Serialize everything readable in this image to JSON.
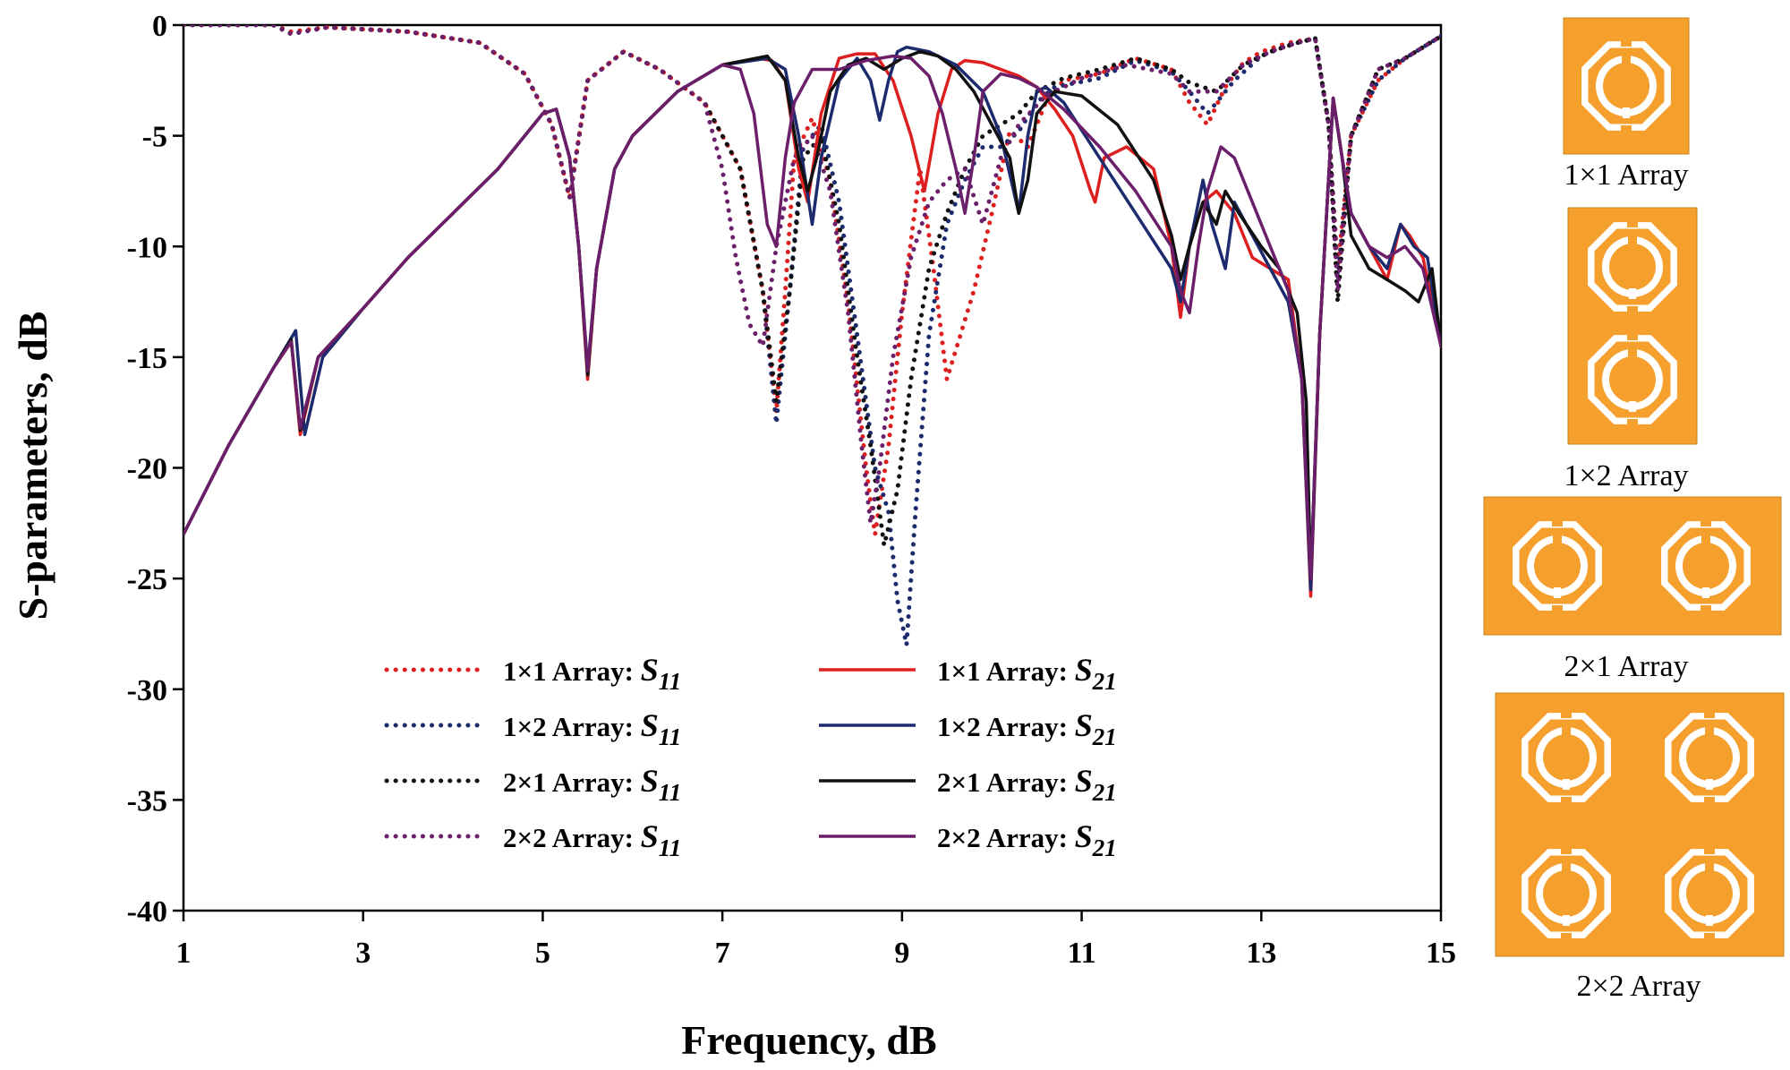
{
  "chart_data": {
    "type": "line",
    "title": "",
    "xlabel": "Frequency, dB",
    "ylabel": "S-parameters, dB",
    "xlim": [
      1,
      15
    ],
    "ylim": [
      -40,
      0
    ],
    "xticks": [
      1,
      3,
      5,
      7,
      9,
      11,
      13,
      15
    ],
    "yticks": [
      0,
      -5,
      -10,
      -15,
      -20,
      -25,
      -30,
      -35,
      -40
    ],
    "legend_position": "bottom-center",
    "series": [
      {
        "name": "1×1 Array: S11",
        "array": "1×1 Array",
        "param": "S",
        "sub": "11",
        "style": "dotted",
        "color": "#dd1f1f",
        "x": [
          1,
          2,
          2.2,
          2.6,
          3.5,
          4.3,
          4.8,
          5.1,
          5.3,
          5.5,
          5.9,
          6.3,
          6.8,
          7.2,
          7.45,
          7.6,
          7.7,
          7.8,
          8.0,
          8.2,
          8.4,
          8.6,
          8.7,
          8.85,
          9.0,
          9.2,
          9.35,
          9.5,
          9.65,
          9.8,
          10.0,
          10.2,
          10.4,
          10.6,
          10.8,
          11.2,
          11.6,
          12.0,
          12.2,
          12.4,
          12.6,
          12.8,
          13.0,
          13.3,
          13.6,
          13.75,
          13.85,
          14.0,
          14.3,
          14.6,
          15
        ],
        "y": [
          0,
          0,
          -0.3,
          -0.1,
          -0.3,
          -0.8,
          -2.2,
          -4.5,
          -7.8,
          -2.5,
          -1.2,
          -2.0,
          -3.5,
          -6.5,
          -12.0,
          -17.5,
          -12.0,
          -6.0,
          -4.2,
          -7.0,
          -12.5,
          -20.0,
          -23.0,
          -19.0,
          -13.0,
          -6.5,
          -11.0,
          -16.0,
          -14.0,
          -12.0,
          -8.5,
          -4.8,
          -5.5,
          -3.5,
          -2.5,
          -2.2,
          -1.5,
          -2.0,
          -3.5,
          -4.5,
          -2.8,
          -1.7,
          -1.2,
          -0.8,
          -0.6,
          -4.5,
          -11.0,
          -5.0,
          -2.5,
          -1.5,
          -0.5
        ]
      },
      {
        "name": "1×2 Array: S11",
        "array": "1×2 Array",
        "param": "S",
        "sub": "11",
        "style": "dotted",
        "color": "#1c2a6e",
        "x": [
          1,
          2,
          2.2,
          2.6,
          3.5,
          4.3,
          4.8,
          5.1,
          5.3,
          5.5,
          5.9,
          6.3,
          6.8,
          7.2,
          7.45,
          7.6,
          7.75,
          7.9,
          8.1,
          8.3,
          8.5,
          8.7,
          8.85,
          8.95,
          9.05,
          9.15,
          9.3,
          9.5,
          9.7,
          9.9,
          10.1,
          10.3,
          10.5,
          10.7,
          11.2,
          11.6,
          12.0,
          12.2,
          12.4,
          12.7,
          13.0,
          13.3,
          13.6,
          13.75,
          13.85,
          14.0,
          14.3,
          14.6,
          15
        ],
        "y": [
          0,
          0,
          -0.4,
          -0.1,
          -0.3,
          -0.8,
          -2.2,
          -4.5,
          -7.8,
          -2.5,
          -1.2,
          -2.0,
          -3.5,
          -6.5,
          -12.0,
          -18.0,
          -12.0,
          -5.5,
          -4.5,
          -8.0,
          -14.0,
          -20.0,
          -22.0,
          -26.0,
          -28.0,
          -22.0,
          -14.0,
          -9.0,
          -7.0,
          -5.5,
          -5.5,
          -4.8,
          -3.5,
          -2.8,
          -2.4,
          -1.6,
          -2.1,
          -3.0,
          -4.0,
          -2.5,
          -1.4,
          -0.9,
          -0.6,
          -4.5,
          -11.5,
          -5.0,
          -2.5,
          -1.5,
          -0.5
        ]
      },
      {
        "name": "2×1 Array: S11",
        "array": "2×1 Array",
        "param": "S",
        "sub": "11",
        "style": "dotted",
        "color": "#111111",
        "x": [
          1,
          2,
          2.2,
          2.6,
          3.5,
          4.3,
          4.8,
          5.1,
          5.3,
          5.5,
          5.9,
          6.3,
          6.8,
          7.2,
          7.45,
          7.6,
          7.75,
          7.9,
          8.1,
          8.3,
          8.5,
          8.65,
          8.8,
          8.95,
          9.1,
          9.3,
          9.5,
          9.7,
          9.9,
          10.1,
          10.3,
          10.5,
          10.8,
          11.2,
          11.6,
          12.0,
          12.2,
          12.5,
          12.8,
          13.1,
          13.4,
          13.6,
          13.75,
          13.85,
          14.0,
          14.3,
          14.6,
          15
        ],
        "y": [
          0,
          0,
          -0.4,
          -0.1,
          -0.3,
          -0.8,
          -2.2,
          -4.5,
          -7.8,
          -2.5,
          -1.2,
          -2.0,
          -3.5,
          -6.5,
          -12.0,
          -17.0,
          -12.0,
          -6.0,
          -5.0,
          -9.0,
          -15.0,
          -19.0,
          -23.5,
          -21.0,
          -16.0,
          -11.0,
          -8.5,
          -6.5,
          -5.0,
          -4.5,
          -4.0,
          -3.0,
          -2.4,
          -2.0,
          -1.5,
          -2.0,
          -2.6,
          -3.0,
          -1.8,
          -1.2,
          -0.8,
          -0.6,
          -4.5,
          -12.5,
          -5.0,
          -2.0,
          -1.5,
          -0.5
        ]
      },
      {
        "name": "2×2 Array: S11",
        "array": "2×2 Array",
        "param": "S",
        "sub": "11",
        "style": "dotted",
        "color": "#6b1f6b",
        "x": [
          1,
          2,
          2.2,
          2.6,
          3.5,
          4.3,
          4.8,
          5.1,
          5.3,
          5.5,
          5.9,
          6.3,
          6.8,
          7.0,
          7.15,
          7.3,
          7.45,
          7.6,
          7.8,
          8.0,
          8.2,
          8.4,
          8.55,
          8.65,
          8.75,
          8.9,
          9.1,
          9.3,
          9.5,
          9.7,
          9.9,
          10.1,
          10.3,
          10.6,
          11.0,
          11.5,
          12.0,
          12.2,
          12.5,
          12.8,
          13.1,
          13.4,
          13.6,
          13.75,
          13.85,
          14.0,
          14.3,
          14.6,
          15
        ],
        "y": [
          0,
          0,
          -0.4,
          -0.1,
          -0.3,
          -0.8,
          -2.2,
          -4.5,
          -7.8,
          -2.5,
          -1.2,
          -2.0,
          -3.5,
          -6.5,
          -10.5,
          -13.5,
          -14.5,
          -10.0,
          -6.0,
          -5.0,
          -7.5,
          -13.0,
          -19.0,
          -22.5,
          -20.0,
          -15.0,
          -10.5,
          -8.0,
          -7.0,
          -6.5,
          -9.0,
          -6.0,
          -4.5,
          -3.2,
          -2.4,
          -1.8,
          -2.2,
          -3.0,
          -3.0,
          -1.8,
          -1.2,
          -0.8,
          -0.6,
          -4.5,
          -12.0,
          -5.0,
          -2.0,
          -1.5,
          -0.5
        ]
      },
      {
        "name": "1×1 Array: S21",
        "array": "1×1 Array",
        "param": "S",
        "sub": "21",
        "style": "solid",
        "color": "#dd1f1f",
        "x": [
          1,
          1.5,
          2.0,
          2.2,
          2.3,
          2.5,
          3.0,
          3.5,
          4.0,
          4.5,
          5.0,
          5.15,
          5.3,
          5.4,
          5.5,
          5.6,
          5.8,
          6.0,
          6.5,
          7.0,
          7.4,
          7.55,
          7.7,
          7.85,
          7.95,
          8.1,
          8.3,
          8.5,
          8.7,
          8.9,
          9.1,
          9.25,
          9.4,
          9.55,
          9.7,
          9.9,
          10.1,
          10.3,
          10.5,
          10.7,
          10.9,
          11.1,
          11.15,
          11.25,
          11.5,
          11.8,
          12.0,
          12.1,
          12.2,
          12.35,
          12.5,
          12.7,
          12.9,
          13.1,
          13.3,
          13.45,
          13.55,
          13.65,
          13.8,
          13.9,
          14.0,
          14.2,
          14.4,
          14.55,
          14.65,
          14.8,
          15
        ],
        "y": [
          -23.0,
          -19.0,
          -15.5,
          -14.3,
          -18.5,
          -15.0,
          -12.8,
          -10.5,
          -8.5,
          -6.5,
          -4.0,
          -3.8,
          -6.0,
          -10.0,
          -16.0,
          -11.0,
          -6.5,
          -5.0,
          -3.0,
          -1.8,
          -1.5,
          -1.6,
          -2.5,
          -6.5,
          -8.0,
          -4.0,
          -1.5,
          -1.3,
          -1.3,
          -2.5,
          -5.0,
          -7.5,
          -4.0,
          -2.0,
          -1.6,
          -1.7,
          -2.0,
          -2.3,
          -2.8,
          -3.8,
          -5.0,
          -7.5,
          -8.0,
          -6.0,
          -5.5,
          -6.5,
          -10.0,
          -13.2,
          -10.0,
          -8.0,
          -7.5,
          -8.5,
          -10.5,
          -11.0,
          -11.5,
          -16.0,
          -25.8,
          -14.0,
          -3.3,
          -6.0,
          -8.5,
          -10.0,
          -11.5,
          -9.0,
          -9.5,
          -10.5,
          -14.5
        ]
      },
      {
        "name": "1×2 Array: S21",
        "array": "1×2 Array",
        "param": "S",
        "sub": "21",
        "style": "solid",
        "color": "#1c2a6e",
        "x": [
          1,
          1.5,
          2.0,
          2.25,
          2.35,
          2.55,
          3.0,
          3.5,
          4.0,
          4.5,
          5.0,
          5.15,
          5.3,
          5.4,
          5.5,
          5.6,
          5.8,
          6.0,
          6.5,
          7.0,
          7.5,
          7.7,
          7.85,
          8.0,
          8.1,
          8.3,
          8.5,
          8.65,
          8.75,
          8.85,
          8.95,
          9.05,
          9.3,
          9.6,
          9.9,
          10.1,
          10.3,
          10.4,
          10.5,
          10.6,
          10.8,
          11.2,
          11.6,
          12.0,
          12.1,
          12.2,
          12.35,
          12.45,
          12.6,
          12.7,
          12.9,
          13.1,
          13.3,
          13.45,
          13.55,
          13.65,
          13.8,
          13.9,
          14.0,
          14.2,
          14.4,
          14.55,
          14.7,
          14.85,
          15
        ],
        "y": [
          -23.0,
          -19.0,
          -15.5,
          -13.8,
          -18.5,
          -15.0,
          -12.8,
          -10.5,
          -8.5,
          -6.5,
          -4.0,
          -3.8,
          -6.0,
          -10.0,
          -15.5,
          -11.0,
          -6.5,
          -5.0,
          -3.0,
          -1.8,
          -1.5,
          -2.0,
          -5.0,
          -9.0,
          -6.0,
          -2.5,
          -1.5,
          -2.5,
          -4.3,
          -2.5,
          -1.2,
          -1.0,
          -1.2,
          -1.8,
          -3.0,
          -5.0,
          -8.5,
          -5.0,
          -3.0,
          -2.8,
          -3.5,
          -6.0,
          -8.5,
          -11.0,
          -12.5,
          -10.0,
          -7.0,
          -9.0,
          -11.0,
          -8.0,
          -9.5,
          -11.0,
          -12.5,
          -16.0,
          -25.5,
          -14.0,
          -3.3,
          -6.0,
          -8.5,
          -10.0,
          -11.0,
          -9.0,
          -10.0,
          -10.5,
          -14.5
        ]
      },
      {
        "name": "2×1 Array: S21",
        "array": "2×1 Array",
        "param": "S",
        "sub": "21",
        "style": "solid",
        "color": "#111111",
        "x": [
          1,
          1.5,
          2.0,
          2.2,
          2.3,
          2.5,
          3.0,
          3.5,
          4.0,
          4.5,
          5.0,
          5.15,
          5.3,
          5.4,
          5.5,
          5.6,
          5.8,
          6.0,
          6.5,
          7.0,
          7.5,
          7.7,
          7.85,
          7.95,
          8.05,
          8.2,
          8.4,
          8.6,
          8.8,
          9.0,
          9.2,
          9.4,
          9.6,
          9.8,
          10.0,
          10.2,
          10.3,
          10.4,
          10.5,
          10.7,
          11.0,
          11.4,
          11.8,
          12.0,
          12.1,
          12.2,
          12.35,
          12.5,
          12.6,
          12.75,
          13.0,
          13.2,
          13.4,
          13.5,
          13.55,
          13.65,
          13.8,
          13.9,
          14.0,
          14.2,
          14.4,
          14.6,
          14.75,
          14.9,
          15
        ],
        "y": [
          -23.0,
          -19.0,
          -15.5,
          -14.2,
          -18.3,
          -15.0,
          -12.8,
          -10.5,
          -8.5,
          -6.5,
          -4.0,
          -3.8,
          -6.0,
          -10.0,
          -15.8,
          -11.0,
          -6.5,
          -5.0,
          -3.0,
          -1.8,
          -1.4,
          -2.5,
          -6.0,
          -7.5,
          -6.0,
          -3.0,
          -1.8,
          -1.5,
          -2.0,
          -1.5,
          -1.2,
          -1.4,
          -2.0,
          -3.0,
          -4.5,
          -6.0,
          -8.5,
          -7.0,
          -4.0,
          -3.0,
          -3.2,
          -4.5,
          -7.0,
          -9.5,
          -11.5,
          -10.0,
          -8.0,
          -9.0,
          -7.5,
          -8.5,
          -10.0,
          -11.0,
          -13.0,
          -17.0,
          -25.0,
          -14.0,
          -3.3,
          -6.0,
          -9.5,
          -11.0,
          -11.5,
          -12.0,
          -12.5,
          -11.0,
          -14.5
        ]
      },
      {
        "name": "2×2 Array: S21",
        "array": "2×2 Array",
        "param": "S",
        "sub": "21",
        "style": "solid",
        "color": "#6b1f6b",
        "x": [
          1,
          1.5,
          2.0,
          2.2,
          2.3,
          2.5,
          3.0,
          3.5,
          4.0,
          4.5,
          5.0,
          5.15,
          5.3,
          5.4,
          5.5,
          5.6,
          5.8,
          6.0,
          6.5,
          7.0,
          7.2,
          7.35,
          7.5,
          7.6,
          7.7,
          7.8,
          8.0,
          8.3,
          8.6,
          8.9,
          9.1,
          9.3,
          9.45,
          9.6,
          9.7,
          9.8,
          9.9,
          10.1,
          10.3,
          10.5,
          10.8,
          11.2,
          11.6,
          12.0,
          12.1,
          12.2,
          12.3,
          12.4,
          12.55,
          12.7,
          12.9,
          13.1,
          13.3,
          13.45,
          13.55,
          13.65,
          13.8,
          13.9,
          14.0,
          14.2,
          14.4,
          14.6,
          14.8,
          15
        ],
        "y": [
          -23.0,
          -19.0,
          -15.5,
          -14.3,
          -18.2,
          -15.0,
          -12.8,
          -10.5,
          -8.5,
          -6.5,
          -4.0,
          -3.8,
          -6.0,
          -10.0,
          -15.6,
          -11.0,
          -6.5,
          -5.0,
          -3.0,
          -1.8,
          -2.0,
          -4.0,
          -9.0,
          -10.0,
          -6.0,
          -3.5,
          -2.0,
          -2.0,
          -1.6,
          -1.4,
          -1.5,
          -2.3,
          -4.0,
          -6.5,
          -8.5,
          -6.0,
          -3.0,
          -2.2,
          -2.4,
          -2.8,
          -3.8,
          -5.5,
          -7.5,
          -10.0,
          -12.0,
          -13.0,
          -10.0,
          -7.5,
          -5.5,
          -6.0,
          -8.0,
          -10.0,
          -12.0,
          -16.0,
          -25.0,
          -14.0,
          -3.3,
          -6.0,
          -8.5,
          -10.0,
          -10.5,
          -10.0,
          -11.0,
          -14.5
        ]
      }
    ]
  },
  "insets": [
    {
      "label": "1×1 Array"
    },
    {
      "label": "1×2 Array"
    },
    {
      "label": "2×1 Array"
    },
    {
      "label": "2×2 Array"
    }
  ],
  "colors": {
    "substrate": "#f5a02d",
    "slot": "#ffffff"
  }
}
